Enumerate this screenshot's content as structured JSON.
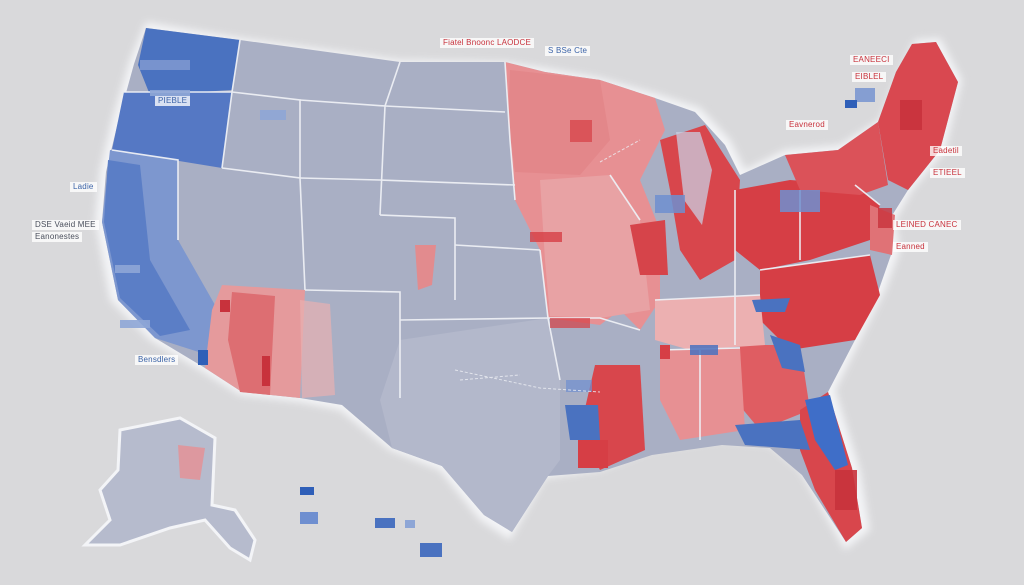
{
  "map": {
    "colors": {
      "background": "#d9d9db",
      "neutral_state": "#a9afc4",
      "border": "#f3f4f7",
      "democratic_blue": "#4a72c0",
      "republican_red": "#d8464c",
      "light_red": "#e79093",
      "light_blue": "#8ea6d6"
    },
    "labels": [
      {
        "text": "Fiatel Bnoonc LAODCE",
        "tone": "red"
      },
      {
        "text": "S BSe Cte",
        "tone": "blue"
      },
      {
        "text": "EANEECI",
        "tone": "red"
      },
      {
        "text": "EIBLEL",
        "tone": "red"
      },
      {
        "text": "Eavnerod",
        "tone": "red"
      },
      {
        "text": "Eadetil",
        "tone": "red"
      },
      {
        "text": "ETIEEL",
        "tone": "red"
      },
      {
        "text": "LEINED CANEC",
        "tone": "red"
      },
      {
        "text": "Eanned",
        "tone": "red"
      },
      {
        "text": "Ladie",
        "tone": "blue"
      },
      {
        "text": "DSE Vaeid MEE",
        "tone": "dark"
      },
      {
        "text": "Eanonestes",
        "tone": "dark"
      },
      {
        "text": "PIEBLE",
        "tone": "blue"
      },
      {
        "text": "Bensdlers",
        "tone": "blue"
      }
    ]
  }
}
